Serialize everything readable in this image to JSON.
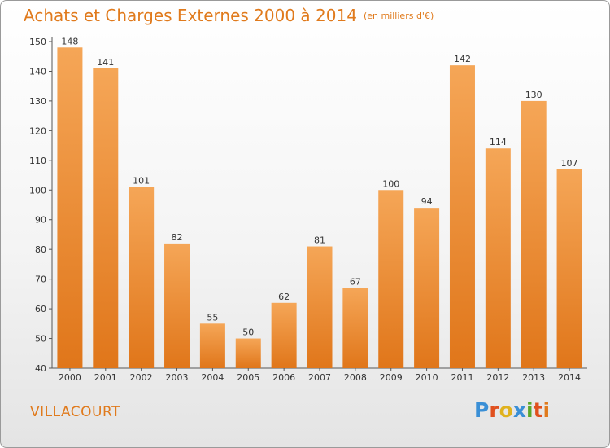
{
  "header": {
    "title": "Achats et Charges Externes 2000 à 2014",
    "unit": "(en milliers d'€)"
  },
  "footer": {
    "commune": "VILLACOURT",
    "logo": "Proxiti",
    "logo_colors": [
      "#3a8fd6",
      "#e0501e",
      "#e0b21e",
      "#3a8fd6",
      "#5aa82a",
      "#e0501e",
      "#e07a1c"
    ]
  },
  "colors": {
    "accent": "#e07a1c",
    "bar_top": "#f5a657",
    "bar_bottom": "#e0761a"
  },
  "chart_data": {
    "type": "bar",
    "title": "Achats et Charges Externes 2000 à 2014",
    "subtitle": "(en milliers d'€)",
    "categories": [
      "2000",
      "2001",
      "2002",
      "2003",
      "2004",
      "2005",
      "2006",
      "2007",
      "2008",
      "2009",
      "2010",
      "2011",
      "2012",
      "2013",
      "2014"
    ],
    "values": [
      148,
      141,
      101,
      82,
      55,
      50,
      62,
      81,
      67,
      100,
      94,
      142,
      114,
      130,
      107
    ],
    "ylim": [
      40,
      150
    ],
    "yticks": [
      40,
      50,
      60,
      70,
      80,
      90,
      100,
      110,
      120,
      130,
      140,
      150
    ],
    "grid": false,
    "legend": "none"
  }
}
